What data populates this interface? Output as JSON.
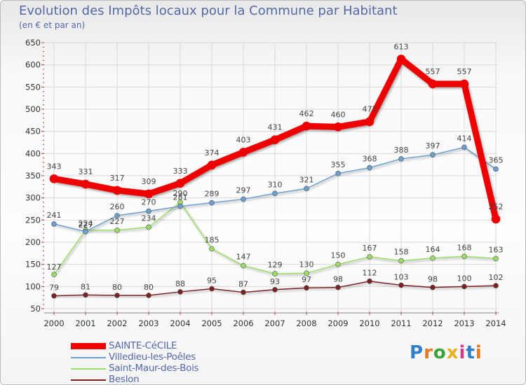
{
  "title": "Evolution des Impôts locaux pour la Commune par Habitant",
  "subtitle": "(en € et par an)",
  "brand": "Proxiti",
  "colors": {
    "bg": "#f6f6f6",
    "text": "#5468a8",
    "grid": "#d8d8d8"
  },
  "chart_data": {
    "type": "line",
    "title": "Evolution des Impôts locaux pour la Commune par Habitant",
    "ylabel": "(en € et par an)",
    "xlabel": "",
    "ylim": [
      50,
      650
    ],
    "yticks": [
      50,
      100,
      150,
      200,
      250,
      300,
      350,
      400,
      450,
      500,
      550,
      600,
      650
    ],
    "x": [
      "2000",
      "2001",
      "2002",
      "2003",
      "2004",
      "2005",
      "2006",
      "2007",
      "2008",
      "2009",
      "2010",
      "2011",
      "2012",
      "2013",
      "2014"
    ],
    "legend_position": "bottom-left",
    "series": [
      {
        "name": "SAINTE-CéCILE",
        "color": "#ee0000",
        "values": [
          343,
          331,
          317,
          309,
          333,
          374,
          403,
          431,
          462,
          460,
          472,
          613,
          557,
          557,
          252
        ]
      },
      {
        "name": "Villedieu-les-Poêles",
        "color": "#6a9fd0",
        "values": [
          241,
          224,
          260,
          270,
          281,
          289,
          297,
          310,
          321,
          355,
          368,
          388,
          397,
          414,
          365
        ]
      },
      {
        "name": "Saint-Maur-des-Bois",
        "color": "#99dd66",
        "values": [
          127,
          227,
          227,
          234,
          290,
          185,
          147,
          129,
          130,
          150,
          167,
          158,
          164,
          168,
          163
        ]
      },
      {
        "name": "Beslon",
        "color": "#7a2222",
        "values": [
          79,
          81,
          80,
          80,
          88,
          95,
          87,
          93,
          97,
          98,
          112,
          103,
          98,
          100,
          102
        ]
      }
    ]
  }
}
